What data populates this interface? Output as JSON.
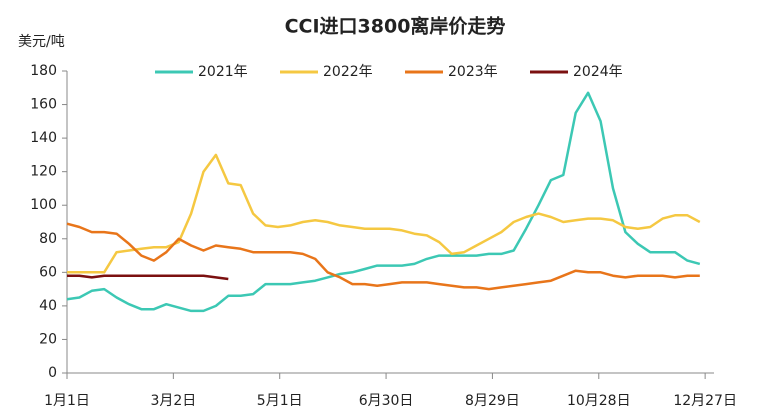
{
  "chart_data": {
    "type": "line",
    "title": "CCI进口3800离岸价走势",
    "y_label": "美元/吨",
    "x": [
      0,
      7,
      14,
      21,
      28,
      35,
      42,
      49,
      56,
      63,
      70,
      77,
      84,
      91,
      98,
      105,
      112,
      119,
      126,
      133,
      140,
      147,
      154,
      161,
      168,
      175,
      182,
      189,
      196,
      203,
      210,
      217,
      224,
      231,
      238,
      245,
      252,
      259,
      266,
      273,
      280,
      287,
      294,
      301,
      308,
      315,
      322,
      329,
      336,
      343,
      350,
      357
    ],
    "xlim": [
      0,
      365
    ],
    "xticks": [
      {
        "value": 0,
        "label": "1月1日"
      },
      {
        "value": 60,
        "label": "3月2日"
      },
      {
        "value": 120,
        "label": "5月1日"
      },
      {
        "value": 180,
        "label": "6月30日"
      },
      {
        "value": 240,
        "label": "8月29日"
      },
      {
        "value": 300,
        "label": "10月28日"
      },
      {
        "value": 360,
        "label": "12月27日"
      }
    ],
    "ylim": [
      0,
      180
    ],
    "yticks": [
      0,
      20,
      40,
      60,
      80,
      100,
      120,
      140,
      160,
      180
    ],
    "legend": "top",
    "series": [
      {
        "name": "2021年",
        "color": "#3cc8b4",
        "values": [
          44,
          45,
          49,
          50,
          45,
          41,
          38,
          38,
          41,
          39,
          37,
          37,
          40,
          46,
          46,
          47,
          53,
          53,
          53,
          54,
          55,
          57,
          59,
          60,
          62,
          64,
          64,
          64,
          65,
          68,
          70,
          70,
          70,
          70,
          71,
          71,
          73,
          86,
          100,
          115,
          118,
          155,
          167,
          150,
          110,
          84,
          77,
          72,
          72,
          72,
          67,
          65
        ]
      },
      {
        "name": "2022年",
        "color": "#f5c842",
        "values": [
          60,
          60,
          60,
          60,
          72,
          73,
          74,
          75,
          75,
          78,
          95,
          120,
          130,
          113,
          112,
          95,
          88,
          87,
          88,
          90,
          91,
          90,
          88,
          87,
          86,
          86,
          86,
          85,
          83,
          82,
          78,
          71,
          72,
          76,
          80,
          84,
          90,
          93,
          95,
          93,
          90,
          91,
          92,
          92,
          91,
          87,
          86,
          87,
          92,
          94,
          94,
          90
        ]
      },
      {
        "name": "2023年",
        "color": "#e8751a",
        "values": [
          89,
          87,
          84,
          84,
          83,
          77,
          70,
          67,
          72,
          80,
          76,
          73,
          76,
          75,
          74,
          72,
          72,
          72,
          72,
          71,
          68,
          60,
          57,
          53,
          53,
          52,
          53,
          54,
          54,
          54,
          53,
          52,
          51,
          51,
          50,
          51,
          52,
          53,
          54,
          55,
          58,
          61,
          60,
          60,
          58,
          57,
          58,
          58,
          58,
          57,
          58,
          58
        ]
      },
      {
        "name": "2024年",
        "color": "#7b1010",
        "values": [
          58,
          58,
          57,
          58,
          58,
          58,
          58,
          58,
          58,
          58,
          58,
          58,
          57,
          56,
          null,
          null,
          null,
          null,
          null,
          null,
          null,
          null,
          null,
          null,
          null,
          null,
          null,
          null,
          null,
          null,
          null,
          null,
          null,
          null,
          null,
          null,
          null,
          null,
          null,
          null,
          null,
          null,
          null,
          null,
          null,
          null,
          null,
          null,
          null,
          null,
          null,
          null
        ]
      }
    ]
  }
}
